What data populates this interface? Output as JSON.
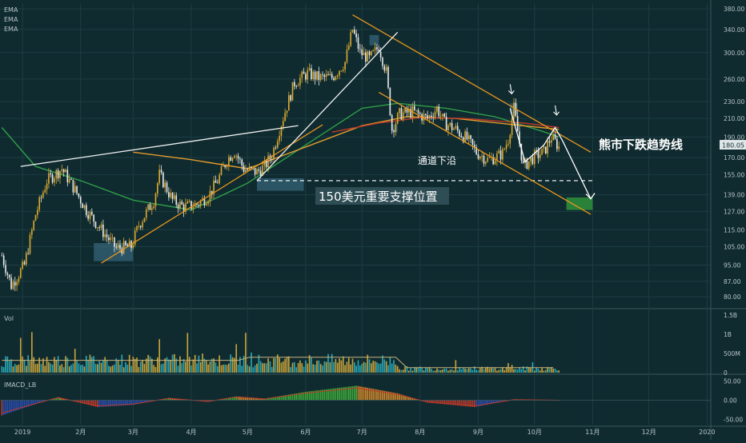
{
  "theme": {
    "background": "#0f2b30",
    "grid": "#1d3d42",
    "axis_text": "#b9c4c6",
    "candle_up": "#d9a82e",
    "candle_down": "#e8e8e8",
    "vol_up": "#c7a23a",
    "vol_down": "#2aa7b5",
    "ema_green": "#2f9e48",
    "ema_orange": "#e39a2c",
    "ema_red": "#c0392b",
    "trend_orange": "#e8961c",
    "trend_white": "#f2f2f2",
    "support_box": "#3b6b82",
    "target_box": "#2e8b3c",
    "price_badge": "#dfe6e8"
  },
  "panels": {
    "main": {
      "labels": [
        "EMA",
        "EMA",
        "EMA"
      ]
    },
    "volume": {
      "label": "Vol"
    },
    "macd": {
      "label": "IMACD_LB"
    }
  },
  "annotations": {
    "bear_trendline": "熊市下跌趋势线",
    "channel_lower": "通道下沿",
    "support_level": "150美元重要支撑位置"
  },
  "last_price": "180.05",
  "chart_data": [
    {
      "type": "candlestick",
      "title": "",
      "x_ticks": [
        "2019",
        "2月",
        "3月",
        "4月",
        "5月",
        "6月",
        "7月",
        "8月",
        "9月",
        "10月",
        "11月",
        "12月",
        "2020"
      ],
      "y_ticks": [
        "380.00",
        "340.00",
        "300.00",
        "260.00",
        "230.00",
        "210.00",
        "190.00",
        "170.00",
        "155.00",
        "139.00",
        "127.00",
        "115.00",
        "105.00",
        "95.00",
        "87.00",
        "80.00"
      ],
      "y_scale": "log",
      "ylim": [
        76,
        392
      ],
      "close_path": [
        [
          "2018-12-21",
          100
        ],
        [
          "2018-12-26",
          85
        ],
        [
          "2019-01-02",
          95
        ],
        [
          "2019-01-08",
          125
        ],
        [
          "2019-01-14",
          150
        ],
        [
          "2019-01-22",
          160
        ],
        [
          "2019-01-28",
          145
        ],
        [
          "2019-02-04",
          128
        ],
        [
          "2019-02-12",
          115
        ],
        [
          "2019-02-20",
          104
        ],
        [
          "2019-02-28",
          105
        ],
        [
          "2019-03-04",
          118
        ],
        [
          "2019-03-12",
          135
        ],
        [
          "2019-03-15",
          155
        ],
        [
          "2019-03-22",
          135
        ],
        [
          "2019-03-28",
          130
        ],
        [
          "2019-04-04",
          132
        ],
        [
          "2019-04-10",
          138
        ],
        [
          "2019-04-15",
          150
        ],
        [
          "2019-04-20",
          168
        ],
        [
          "2019-04-24",
          176
        ],
        [
          "2019-04-29",
          160
        ],
        [
          "2019-05-06",
          157
        ],
        [
          "2019-05-10",
          162
        ],
        [
          "2019-05-14",
          172
        ],
        [
          "2019-05-18",
          198
        ],
        [
          "2019-05-22",
          225
        ],
        [
          "2019-05-26",
          255
        ],
        [
          "2019-06-02",
          268
        ],
        [
          "2019-06-08",
          262
        ],
        [
          "2019-06-15",
          262
        ],
        [
          "2019-06-22",
          285
        ],
        [
          "2019-06-26",
          340
        ],
        [
          "2019-06-30",
          300
        ],
        [
          "2019-07-05",
          290
        ],
        [
          "2019-07-10",
          310
        ],
        [
          "2019-07-14",
          270
        ],
        [
          "2019-07-17",
          198
        ],
        [
          "2019-07-21",
          215
        ],
        [
          "2019-07-28",
          218
        ],
        [
          "2019-08-05",
          210
        ],
        [
          "2019-08-10",
          222
        ],
        [
          "2019-08-14",
          205
        ],
        [
          "2019-08-20",
          198
        ],
        [
          "2019-08-26",
          188
        ],
        [
          "2019-08-31",
          175
        ],
        [
          "2019-09-06",
          168
        ],
        [
          "2019-09-10",
          170
        ],
        [
          "2019-09-14",
          174
        ],
        [
          "2019-09-17",
          188
        ],
        [
          "2019-09-20",
          222
        ],
        [
          "2019-09-25",
          162
        ],
        [
          "2019-10-01",
          171
        ],
        [
          "2019-10-06",
          175
        ],
        [
          "2019-10-10",
          190
        ],
        [
          "2019-10-14",
          180.05
        ]
      ],
      "ema_series": [
        {
          "color": "green",
          "values": [
            [
              "2018-12-21",
              200
            ],
            [
              "2019-01-08",
              162
            ],
            [
              "2019-02-01",
              150
            ],
            [
              "2019-03-01",
              135
            ],
            [
              "2019-04-01",
              128
            ],
            [
              "2019-05-01",
              148
            ],
            [
              "2019-06-01",
              182
            ],
            [
              "2019-07-01",
              222
            ],
            [
              "2019-07-20",
              228
            ],
            [
              "2019-08-15",
              222
            ],
            [
              "2019-09-10",
              212
            ],
            [
              "2019-10-05",
              196
            ],
            [
              "2019-10-14",
              190
            ]
          ]
        },
        {
          "color": "orange",
          "values": [
            [
              "2019-03-01",
              175
            ],
            [
              "2019-04-01",
              168
            ],
            [
              "2019-05-01",
              160
            ],
            [
              "2019-06-01",
              180
            ],
            [
              "2019-07-01",
              202
            ],
            [
              "2019-07-25",
              212
            ],
            [
              "2019-08-20",
              210
            ],
            [
              "2019-09-20",
              203
            ],
            [
              "2019-10-14",
              198
            ]
          ]
        },
        {
          "color": "red",
          "values": [
            [
              "2019-06-15",
              195
            ],
            [
              "2019-07-10",
              205
            ],
            [
              "2019-08-01",
              211
            ],
            [
              "2019-08-25",
              210
            ],
            [
              "2019-09-25",
              205
            ],
            [
              "2019-10-14",
              200
            ]
          ]
        }
      ],
      "trend_lines": [
        {
          "name": "bear-trendline",
          "color": "orange",
          "from": [
            "2019-06-26",
            368
          ],
          "to": [
            "2019-10-31",
            175
          ]
        },
        {
          "name": "channel-lower",
          "color": "orange",
          "from": [
            "2019-07-10",
            242
          ],
          "to": [
            "2019-10-31",
            125
          ]
        },
        {
          "name": "rising-support",
          "color": "orange",
          "from": [
            "2019-02-12",
            96
          ],
          "to": [
            "2019-06-10",
            203
          ]
        },
        {
          "name": "resistance-line",
          "color": "white",
          "from": [
            "2018-12-31",
            162
          ],
          "to": [
            "2019-05-28",
            202
          ]
        },
        {
          "name": "steep-uptrend",
          "color": "white",
          "from": [
            "2019-05-06",
            150
          ],
          "to": [
            "2019-07-20",
            335
          ]
        }
      ],
      "support_level": 150,
      "support_zones": [
        {
          "from": "2019-02-08",
          "to": "2019-03-01",
          "low": 97,
          "high": 107
        },
        {
          "from": "2019-05-06",
          "to": "2019-05-31",
          "low": 142,
          "high": 152
        },
        {
          "from": "2019-07-17",
          "to": "2019-07-20",
          "low": 195,
          "high": 203
        },
        {
          "from": "2019-07-05",
          "to": "2019-07-10",
          "low": 312,
          "high": 330
        },
        {
          "from": "2019-09-18",
          "to": "2019-09-22",
          "low": 215,
          "high": 228
        }
      ],
      "target_zone": {
        "from": "2019-10-18",
        "to": "2019-11-01",
        "low": 128,
        "high": 137
      },
      "projection_path": [
        [
          "2019-09-18",
          222
        ],
        [
          "2019-09-26",
          166
        ],
        [
          "2019-10-06",
          182
        ],
        [
          "2019-10-12",
          200
        ],
        [
          "2019-10-16",
          186
        ],
        [
          "2019-10-31",
          136
        ]
      ]
    },
    {
      "type": "bar",
      "title": "Vol",
      "y_ticks": [
        "1.5B",
        "1B",
        "500M",
        "0"
      ],
      "ylim": [
        0,
        1.5
      ],
      "units": "billions"
    },
    {
      "type": "bar",
      "title": "IMACD_LB",
      "y_ticks": [
        "50.00",
        "0.00",
        "-50.00"
      ],
      "ylim": [
        -64,
        64
      ]
    }
  ]
}
